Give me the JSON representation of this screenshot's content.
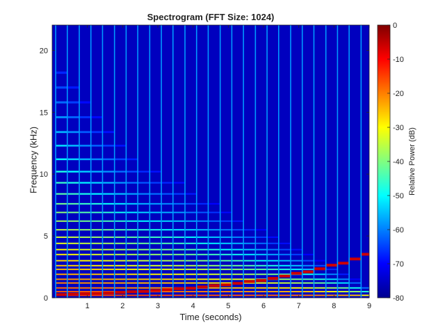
{
  "chart_data": {
    "type": "heatmap",
    "title": "Spectrogram (FFT Size: 1024)",
    "xlabel": "Time (seconds)",
    "ylabel": "Frequency (kHz)",
    "colorbar_label": "Relative Power (dB)",
    "xlim": [
      0,
      9
    ],
    "ylim": [
      0,
      22.05
    ],
    "clim": [
      -80,
      0
    ],
    "colormap": "jet",
    "x_ticks": [
      1,
      2,
      3,
      4,
      5,
      6,
      7,
      8,
      9
    ],
    "y_ticks": [
      0,
      5,
      10,
      15,
      20
    ],
    "colorbar_ticks": [
      0,
      -10,
      -20,
      -30,
      -40,
      -50,
      -60,
      -70,
      -80
    ],
    "note_onsets_s": [
      0.1,
      0.43,
      0.77,
      1.1,
      1.43,
      1.77,
      2.1,
      2.43,
      2.77,
      3.1,
      3.43,
      3.77,
      4.1,
      4.43,
      4.77,
      5.1,
      5.43,
      5.77,
      6.1,
      6.43,
      6.77,
      7.1,
      7.43,
      7.77,
      8.1,
      8.43,
      8.77
    ],
    "harmonic_ceiling_khz": [
      19.5,
      17.8,
      16.0,
      14.8,
      13.8,
      12.7,
      11.8,
      11.0,
      10.5,
      10.0,
      9.5,
      8.8,
      8.2,
      7.6,
      7.0,
      6.5,
      6.0,
      5.5,
      5.0,
      4.5,
      4.0,
      3.5,
      3.0,
      2.5,
      2.0,
      1.5,
      1.0
    ],
    "fundamental_khz": [
      0.26,
      0.29,
      0.33,
      0.35,
      0.39,
      0.44,
      0.49,
      0.52,
      0.59,
      0.66,
      0.74,
      0.78,
      0.88,
      0.99,
      1.05,
      1.17,
      1.32,
      1.4,
      1.57,
      1.76,
      1.98,
      2.1,
      2.35,
      2.64,
      2.8,
      3.14,
      3.52
    ],
    "harmonic_stripes_khz": [
      0.2,
      0.5,
      0.8,
      1.2,
      1.5,
      1.9,
      2.3,
      2.6,
      3.0,
      3.5,
      3.9,
      4.4,
      4.9,
      5.5,
      6.2,
      6.9,
      7.6,
      8.4,
      9.3,
      10.2,
      11.2,
      12.3,
      13.4,
      14.6,
      15.8,
      17.0,
      18.2
    ],
    "background_db": -75
  }
}
